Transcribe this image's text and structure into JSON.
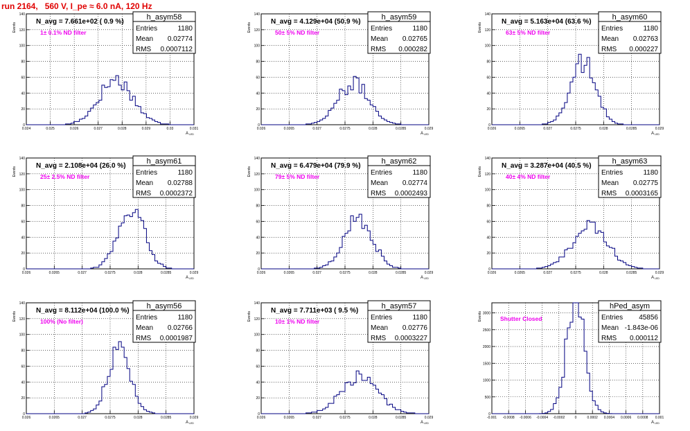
{
  "run_title": "run 2164,   560 V, I_pe ≈ 6.0 nA, 120 Hz",
  "y_axis_title": "Events",
  "x_axis_title": "A",
  "x_axis_subscript": "LED",
  "stats_labels": [
    "Entries",
    "Mean",
    "RMS"
  ],
  "colors": {
    "title": "#e00000",
    "annotation": "#ee00ee",
    "histogram": "#000080",
    "grid": "#000000"
  },
  "chart_data": [
    {
      "type": "bar",
      "name": "h_asym58",
      "navg": "N_avg = 7.661e+02 ( 0.9 %)",
      "filter": "1± 0.1% ND filter",
      "stats": {
        "entries": "1180",
        "mean": "0.02774",
        "rms": "0.0007112"
      },
      "xlim": [
        0.024,
        0.031
      ],
      "ylim": [
        0,
        140
      ],
      "xticks": [
        "0.024",
        "0.025",
        "0.026",
        "0.027",
        "0.028",
        "0.029",
        "0.03",
        "0.031"
      ],
      "yticks": [
        "0",
        "20",
        "40",
        "60",
        "80",
        "100",
        "120",
        "140"
      ],
      "mean": 0.02774,
      "rms": 0.0007112,
      "peak": 57
    },
    {
      "type": "bar",
      "name": "h_asym59",
      "navg": "N_avg = 4.129e+04 (50.9 %)",
      "filter": "50± 5% ND filter",
      "stats": {
        "entries": "1180",
        "mean": "0.02765",
        "rms": "0.000282"
      },
      "xlim": [
        0.026,
        0.029
      ],
      "ylim": [
        0,
        140
      ],
      "xticks": [
        "0.026",
        "0.0265",
        "0.027",
        "0.0275",
        "0.028",
        "0.0285",
        "0.029"
      ],
      "yticks": [
        "0",
        "20",
        "40",
        "60",
        "80",
        "100",
        "120",
        "140"
      ],
      "mean": 0.02765,
      "rms": 0.000282,
      "peak": 52
    },
    {
      "type": "bar",
      "name": "h_asym60",
      "navg": "N_avg = 5.163e+04 (63.6 %)",
      "filter": "63± 5% ND filter",
      "stats": {
        "entries": "1180",
        "mean": "0.02763",
        "rms": "0.000227"
      },
      "xlim": [
        0.026,
        0.029
      ],
      "ylim": [
        0,
        140
      ],
      "xticks": [
        "0.026",
        "0.0265",
        "0.027",
        "0.0275",
        "0.028",
        "0.0285",
        "0.029"
      ],
      "yticks": [
        "0",
        "20",
        "40",
        "60",
        "80",
        "100",
        "120",
        "140"
      ],
      "mean": 0.02763,
      "rms": 0.000227,
      "peak": 78
    },
    {
      "type": "bar",
      "name": "h_asym61",
      "navg": "N_avg = 2.108e+04 (26.0 %)",
      "filter": "25± 2.5% ND filter",
      "stats": {
        "entries": "1180",
        "mean": "0.02788",
        "rms": "0.0002372"
      },
      "xlim": [
        0.026,
        0.029
      ],
      "ylim": [
        0,
        140
      ],
      "xticks": [
        "0.026",
        "0.0265",
        "0.027",
        "0.0275",
        "0.028",
        "0.0285",
        "0.029"
      ],
      "yticks": [
        "0",
        "20",
        "40",
        "60",
        "80",
        "100",
        "120",
        "140"
      ],
      "mean": 0.02788,
      "rms": 0.0002372,
      "peak": 73
    },
    {
      "type": "bar",
      "name": "h_asym62",
      "navg": "N_avg = 6.479e+04 (79.9 %)",
      "filter": "79± 5% ND filter",
      "stats": {
        "entries": "1180",
        "mean": "0.02774",
        "rms": "0.0002493"
      },
      "xlim": [
        0.026,
        0.029
      ],
      "ylim": [
        0,
        140
      ],
      "xticks": [
        "0.026",
        "0.0265",
        "0.027",
        "0.0275",
        "0.028",
        "0.0285",
        "0.029"
      ],
      "yticks": [
        "0",
        "20",
        "40",
        "60",
        "80",
        "100",
        "120",
        "140"
      ],
      "mean": 0.02774,
      "rms": 0.0002493,
      "peak": 66
    },
    {
      "type": "bar",
      "name": "h_asym63",
      "navg": "N_avg = 3.287e+04 (40.5 %)",
      "filter": "40± 4% ND filter",
      "stats": {
        "entries": "1180",
        "mean": "0.02775",
        "rms": "0.0003165"
      },
      "xlim": [
        0.026,
        0.029
      ],
      "ylim": [
        0,
        140
      ],
      "xticks": [
        "0.026",
        "0.0265",
        "0.027",
        "0.0275",
        "0.028",
        "0.0285",
        "0.029"
      ],
      "yticks": [
        "0",
        "20",
        "40",
        "60",
        "80",
        "100",
        "120",
        "140"
      ],
      "mean": 0.02775,
      "rms": 0.0003165,
      "peak": 53
    },
    {
      "type": "bar",
      "name": "h_asym56",
      "navg": "N_avg = 8.112e+04 (100.0 %)",
      "filter": "100% (No filter)",
      "stats": {
        "entries": "1180",
        "mean": "0.02766",
        "rms": "0.0001987"
      },
      "xlim": [
        0.026,
        0.029
      ],
      "ylim": [
        0,
        140
      ],
      "xticks": [
        "0.026",
        "0.0265",
        "0.027",
        "0.0275",
        "0.028",
        "0.0285",
        "0.029"
      ],
      "yticks": [
        "0",
        "20",
        "40",
        "60",
        "80",
        "100",
        "120",
        "140"
      ],
      "mean": 0.02766,
      "rms": 0.0001987,
      "peak": 81
    },
    {
      "type": "bar",
      "name": "h_asym57",
      "navg": "N_avg = 7.711e+03 ( 9.5 %)",
      "filter": "10± 1% ND filter",
      "stats": {
        "entries": "1180",
        "mean": "0.02776",
        "rms": "0.0003227"
      },
      "xlim": [
        0.026,
        0.029
      ],
      "ylim": [
        0,
        140
      ],
      "xticks": [
        "0.026",
        "0.0265",
        "0.027",
        "0.0275",
        "0.028",
        "0.0285",
        "0.029"
      ],
      "yticks": [
        "0",
        "20",
        "40",
        "60",
        "80",
        "100",
        "120",
        "140"
      ],
      "mean": 0.02776,
      "rms": 0.0003227,
      "peak": 47
    },
    {
      "type": "bar",
      "name": "hPed_asym",
      "navg": "",
      "filter": "Shutter Closed",
      "stats": {
        "entries": "45856",
        "mean": "-1.843e-06",
        "rms": "0.000112"
      },
      "xlim": [
        -0.001,
        0.001
      ],
      "ylim": [
        0,
        3300
      ],
      "xticks": [
        "-0.001",
        "-0.0008",
        "-0.0006",
        "-0.0004",
        "-0.0002",
        "0",
        "0.0002",
        "0.0004",
        "0.0006",
        "0.0008",
        "0.001"
      ],
      "yticks": [
        "0",
        "500",
        "1000",
        "1500",
        "2000",
        "2500",
        "3000"
      ],
      "mean": -1.843e-06,
      "rms": 0.000112,
      "peak": 3200
    }
  ]
}
